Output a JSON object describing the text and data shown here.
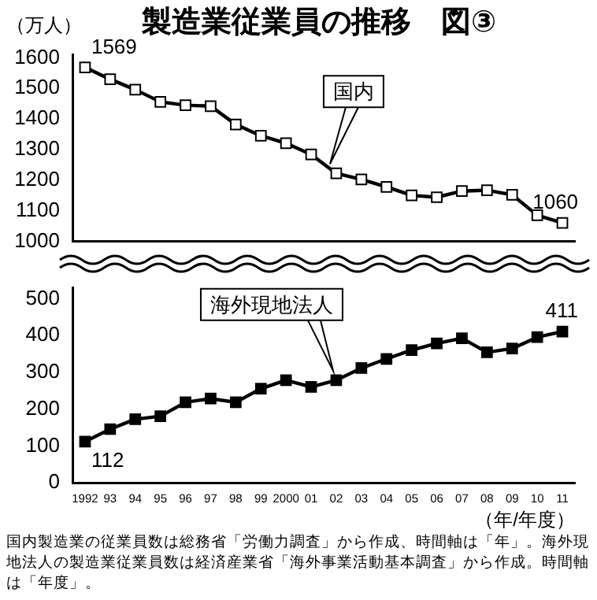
{
  "chart_data": [
    {
      "type": "line",
      "title": "製造業従業員の推移　図③",
      "ylabel": "（万人）",
      "categories": [
        "1992",
        "93",
        "94",
        "95",
        "96",
        "97",
        "98",
        "99",
        "2000",
        "01",
        "02",
        "03",
        "04",
        "05",
        "06",
        "07",
        "08",
        "09",
        "10",
        "11"
      ],
      "series": [
        {
          "name": "国内",
          "color": "#000000",
          "values": [
            1569,
            1530,
            1496,
            1456,
            1445,
            1442,
            1382,
            1345,
            1321,
            1284,
            1222,
            1202,
            1178,
            1150,
            1144,
            1164,
            1167,
            1152,
            1085,
            1060
          ],
          "value_labels": [
            "1569",
            null,
            null,
            null,
            null,
            null,
            null,
            null,
            null,
            null,
            null,
            null,
            null,
            null,
            null,
            null,
            null,
            null,
            null,
            "1060"
          ]
        }
      ],
      "ylim": [
        1000,
        1610
      ],
      "yticks": [
        1000,
        1100,
        1200,
        1300,
        1400,
        1500,
        1600
      ],
      "marker": "square",
      "grid": false,
      "legend": false,
      "tick_labels": "y"
    },
    {
      "type": "line",
      "xlabel": "（年/年度）",
      "categories": [
        "1992",
        "93",
        "94",
        "95",
        "96",
        "97",
        "98",
        "99",
        "2000",
        "01",
        "02",
        "03",
        "04",
        "05",
        "06",
        "07",
        "08",
        "09",
        "10",
        "11"
      ],
      "series": [
        {
          "name": "海外現地法人",
          "color": "#000000",
          "values": [
            112,
            146,
            173,
            181,
            219,
            229,
            219,
            256,
            279,
            261,
            279,
            312,
            337,
            361,
            379,
            393,
            355,
            365,
            396,
            411
          ],
          "value_labels": [
            "112",
            null,
            null,
            null,
            null,
            null,
            null,
            null,
            null,
            null,
            null,
            null,
            null,
            null,
            null,
            null,
            null,
            null,
            null,
            "411"
          ]
        }
      ],
      "ylim": [
        0,
        530
      ],
      "yticks": [
        0,
        100,
        200,
        300,
        400,
        500
      ],
      "marker": "square",
      "grid": false,
      "legend": false,
      "annotations": [
        "国内製造業の従業員数は総務省「労働力調査」から作成、時間軸は「年」。海外現地法人の製造業従業員数は経済産業省「海外事業活動基本調査」から作成。時間軸は「年度」。"
      ]
    }
  ]
}
